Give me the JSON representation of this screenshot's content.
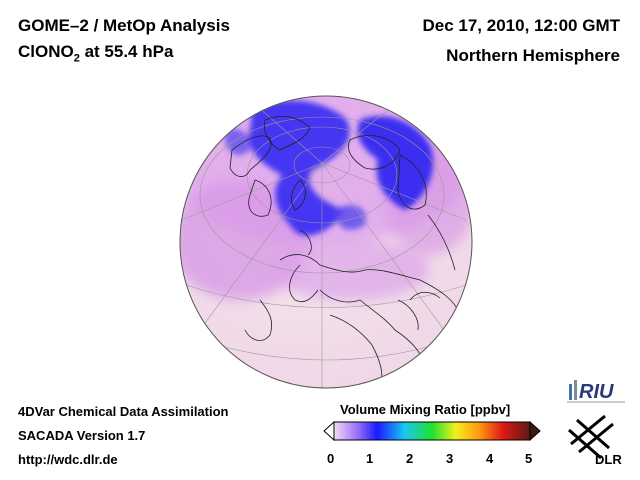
{
  "header": {
    "title_line1": "GOME–2 / MetOp Analysis",
    "title_species": "ClONO",
    "title_subscript": "2",
    "title_level": " at 55.4 hPa",
    "date": "Dec 17, 2010, 12:00 GMT",
    "region": "Northern Hemisphere"
  },
  "footer": {
    "line1": "4DVar Chemical Data Assimilation",
    "line2": "SACADA Version 1.7",
    "line3": "http://wdc.dlr.de"
  },
  "colorbar": {
    "title": "Volume Mixing Ratio [ppbv]",
    "ticks": [
      "0",
      "1",
      "2",
      "3",
      "4",
      "5"
    ],
    "colors": [
      "#f4dcf4",
      "#1a1aff",
      "#18c8f0",
      "#20e030",
      "#f0f020",
      "#ff9a10",
      "#e01818",
      "#5a1a14"
    ]
  },
  "logos": {
    "riu": "RIU",
    "dlr": "DLR"
  },
  "map": {
    "projection": "orthographic",
    "hemisphere": "Northern Hemisphere",
    "colors": {
      "background_low": "#f6e4ec",
      "mid": "#d88ee6",
      "high": "#2a28f0"
    }
  }
}
